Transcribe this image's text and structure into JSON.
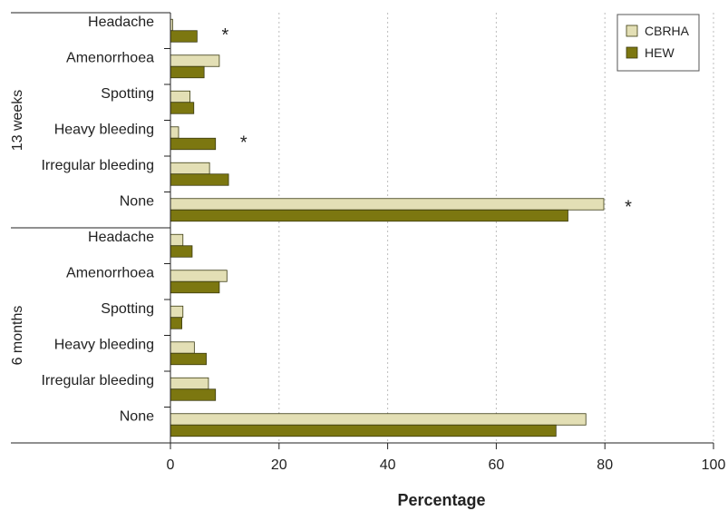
{
  "chart_data": {
    "type": "bar",
    "orientation": "horizontal",
    "xlabel": "Percentage",
    "xlim": [
      0,
      100
    ],
    "xticks": [
      0,
      20,
      40,
      60,
      80,
      100
    ],
    "grid": "vertical dotted",
    "legend_position": "top-right",
    "series": [
      {
        "name": "CBRHA",
        "color": "#e3dfb5"
      },
      {
        "name": "HEW",
        "color": "#7c7710"
      }
    ],
    "groups": [
      {
        "label": "13 weeks",
        "categories": [
          "Headache",
          "Amenorrhoea",
          "Spotting",
          "Heavy bleeding",
          "Irregular bleeding",
          "None"
        ],
        "values": {
          "CBRHA": [
            0.4,
            9.0,
            3.6,
            1.5,
            7.2,
            79.8
          ],
          "HEW": [
            4.9,
            6.2,
            4.3,
            8.3,
            10.7,
            73.2
          ]
        },
        "significant": [
          true,
          false,
          false,
          true,
          false,
          true
        ]
      },
      {
        "label": "6 months",
        "categories": [
          "Headache",
          "Amenorrhoea",
          "Spotting",
          "Heavy bleeding",
          "Irregular bleeding",
          "None"
        ],
        "values": {
          "CBRHA": [
            2.3,
            10.4,
            2.3,
            4.4,
            7.0,
            76.5
          ],
          "HEW": [
            4.0,
            9.0,
            2.1,
            6.6,
            8.3,
            71.0
          ]
        },
        "significant": [
          false,
          false,
          false,
          false,
          false,
          false
        ]
      }
    ],
    "significance_marker": "*"
  }
}
